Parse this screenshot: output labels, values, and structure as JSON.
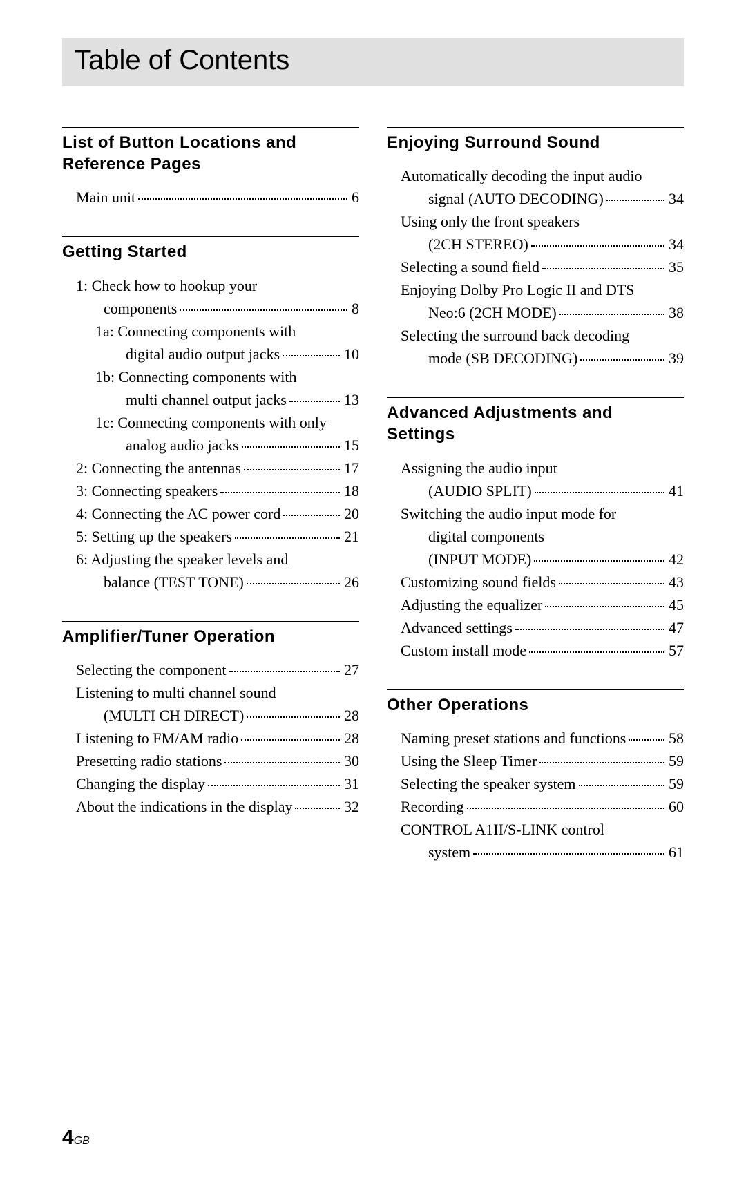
{
  "page_title": "Table of Contents",
  "footer_page": "4",
  "footer_suffix": "GB",
  "left_column": [
    {
      "heading": "List of Button Locations and Reference Pages",
      "entries": [
        {
          "indent": 0,
          "lines": [
            {
              "text": "Main unit",
              "page": "6"
            }
          ]
        }
      ]
    },
    {
      "heading": "Getting Started",
      "entries": [
        {
          "indent": 0,
          "lines": [
            {
              "text": "1: Check how to hookup your"
            },
            {
              "text": "components",
              "page": "8",
              "cont": 1
            }
          ]
        },
        {
          "indent": 1,
          "lines": [
            {
              "text": "1a: Connecting components with"
            },
            {
              "text": "digital audio output jacks",
              "page": "10",
              "cont": 2
            }
          ]
        },
        {
          "indent": 1,
          "lines": [
            {
              "text": "1b: Connecting components with"
            },
            {
              "text": "multi channel output jacks",
              "page": "13",
              "cont": 2
            }
          ]
        },
        {
          "indent": 1,
          "lines": [
            {
              "text": "1c: Connecting components with only"
            },
            {
              "text": "analog audio jacks",
              "page": "15",
              "cont": 2
            }
          ]
        },
        {
          "indent": 0,
          "lines": [
            {
              "text": "2: Connecting the antennas",
              "page": "17"
            }
          ]
        },
        {
          "indent": 0,
          "lines": [
            {
              "text": "3: Connecting speakers",
              "page": "18"
            }
          ]
        },
        {
          "indent": 0,
          "lines": [
            {
              "text": "4: Connecting the AC power cord",
              "page": "20"
            }
          ]
        },
        {
          "indent": 0,
          "lines": [
            {
              "text": "5: Setting up the speakers",
              "page": "21"
            }
          ]
        },
        {
          "indent": 0,
          "lines": [
            {
              "text": "6: Adjusting the speaker levels and"
            },
            {
              "text": "balance (TEST TONE)",
              "page": "26",
              "cont": 1
            }
          ]
        }
      ]
    },
    {
      "heading": "Amplifier/Tuner Operation",
      "entries": [
        {
          "indent": 0,
          "lines": [
            {
              "text": "Selecting the component",
              "page": "27"
            }
          ]
        },
        {
          "indent": 0,
          "lines": [
            {
              "text": "Listening to multi channel sound"
            },
            {
              "text": "(MULTI CH DIRECT)",
              "page": "28",
              "cont": 1
            }
          ]
        },
        {
          "indent": 0,
          "lines": [
            {
              "text": "Listening to FM/AM radio",
              "page": "28"
            }
          ]
        },
        {
          "indent": 0,
          "lines": [
            {
              "text": "Presetting radio stations",
              "page": "30"
            }
          ]
        },
        {
          "indent": 0,
          "lines": [
            {
              "text": "Changing the display",
              "page": "31"
            }
          ]
        },
        {
          "indent": 0,
          "lines": [
            {
              "text": "About the indications in the display",
              "page": "32"
            }
          ]
        }
      ]
    }
  ],
  "right_column": [
    {
      "heading": "Enjoying Surround Sound",
      "entries": [
        {
          "indent": 0,
          "lines": [
            {
              "text": "Automatically decoding the input audio"
            },
            {
              "text": "signal (AUTO DECODING)",
              "page": "34",
              "cont": 1
            }
          ]
        },
        {
          "indent": 0,
          "lines": [
            {
              "text": "Using only the front speakers"
            },
            {
              "text": "(2CH STEREO)",
              "page": "34",
              "cont": 1
            }
          ]
        },
        {
          "indent": 0,
          "lines": [
            {
              "text": "Selecting a sound field",
              "page": "35"
            }
          ]
        },
        {
          "indent": 0,
          "lines": [
            {
              "text": "Enjoying Dolby Pro Logic II and DTS"
            },
            {
              "text": "Neo:6 (2CH MODE)",
              "page": "38",
              "cont": 1
            }
          ]
        },
        {
          "indent": 0,
          "lines": [
            {
              "text": "Selecting the surround back decoding"
            },
            {
              "text": "mode (SB DECODING)",
              "page": "39",
              "cont": 1
            }
          ]
        }
      ]
    },
    {
      "heading": "Advanced Adjustments and Settings",
      "entries": [
        {
          "indent": 0,
          "lines": [
            {
              "text": "Assigning the audio input"
            },
            {
              "text": "(AUDIO SPLIT)",
              "page": "41",
              "cont": 1
            }
          ]
        },
        {
          "indent": 0,
          "lines": [
            {
              "text": "Switching the audio input mode for"
            },
            {
              "text": "digital components",
              "cont": 1
            },
            {
              "text": "(INPUT MODE)",
              "page": "42",
              "cont": 1
            }
          ]
        },
        {
          "indent": 0,
          "lines": [
            {
              "text": "Customizing sound fields",
              "page": "43"
            }
          ]
        },
        {
          "indent": 0,
          "lines": [
            {
              "text": "Adjusting the equalizer",
              "page": "45"
            }
          ]
        },
        {
          "indent": 0,
          "lines": [
            {
              "text": "Advanced settings",
              "page": "47"
            }
          ]
        },
        {
          "indent": 0,
          "lines": [
            {
              "text": "Custom install mode",
              "page": "57"
            }
          ]
        }
      ]
    },
    {
      "heading": "Other Operations",
      "entries": [
        {
          "indent": 0,
          "lines": [
            {
              "text": "Naming preset stations and functions",
              "page": "58",
              "tight": true
            }
          ]
        },
        {
          "indent": 0,
          "lines": [
            {
              "text": "Using the Sleep Timer",
              "page": "59"
            }
          ]
        },
        {
          "indent": 0,
          "lines": [
            {
              "text": "Selecting the speaker system",
              "page": "59"
            }
          ]
        },
        {
          "indent": 0,
          "lines": [
            {
              "text": "Recording",
              "page": "60"
            }
          ]
        },
        {
          "indent": 0,
          "lines": [
            {
              "text": "CONTROL A1II/S-LINK control"
            },
            {
              "text": "system",
              "page": "61",
              "cont": 1
            }
          ]
        }
      ]
    }
  ]
}
